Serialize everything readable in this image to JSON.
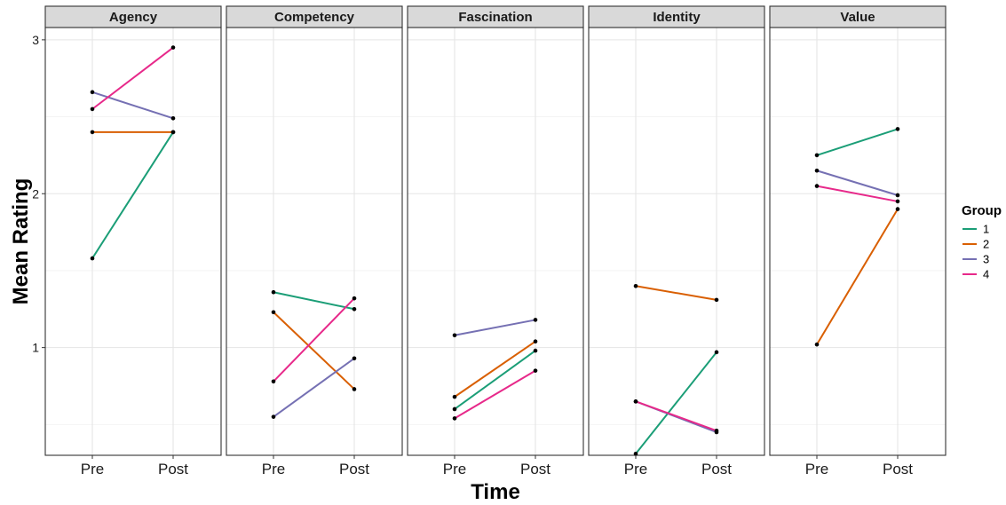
{
  "chart_data": {
    "type": "line",
    "facets": [
      "Agency",
      "Competency",
      "Fascination",
      "Identity",
      "Value"
    ],
    "categories": [
      "Pre",
      "Post"
    ],
    "xlabel": "Time",
    "ylabel": "Mean Rating",
    "ylim": [
      0.3,
      3.08
    ],
    "yticks": [
      "1",
      "2",
      "3"
    ],
    "grid": true,
    "legend": {
      "title": "Group",
      "position": "right",
      "entries": [
        "1",
        "2",
        "3",
        "4"
      ]
    },
    "colors": {
      "1": "#1b9e77",
      "2": "#d95f02",
      "3": "#7570b3",
      "4": "#e7298a"
    },
    "point_color": "#000000",
    "series": [
      {
        "name": "1",
        "facet": "Agency",
        "values": [
          1.58,
          2.4
        ]
      },
      {
        "name": "2",
        "facet": "Agency",
        "values": [
          2.4,
          2.4
        ]
      },
      {
        "name": "3",
        "facet": "Agency",
        "values": [
          2.66,
          2.49
        ]
      },
      {
        "name": "4",
        "facet": "Agency",
        "values": [
          2.55,
          2.95
        ]
      },
      {
        "name": "1",
        "facet": "Competency",
        "values": [
          1.36,
          1.25
        ]
      },
      {
        "name": "2",
        "facet": "Competency",
        "values": [
          1.23,
          0.73
        ]
      },
      {
        "name": "3",
        "facet": "Competency",
        "values": [
          0.55,
          0.93
        ]
      },
      {
        "name": "4",
        "facet": "Competency",
        "values": [
          0.78,
          1.32
        ]
      },
      {
        "name": "1",
        "facet": "Fascination",
        "values": [
          0.6,
          0.98
        ]
      },
      {
        "name": "2",
        "facet": "Fascination",
        "values": [
          0.68,
          1.04
        ]
      },
      {
        "name": "3",
        "facet": "Fascination",
        "values": [
          1.08,
          1.18
        ]
      },
      {
        "name": "4",
        "facet": "Fascination",
        "values": [
          0.54,
          0.85
        ]
      },
      {
        "name": "1",
        "facet": "Identity",
        "values": [
          0.31,
          0.97
        ]
      },
      {
        "name": "2",
        "facet": "Identity",
        "values": [
          1.4,
          1.31
        ]
      },
      {
        "name": "3",
        "facet": "Identity",
        "values": [
          0.65,
          0.45
        ]
      },
      {
        "name": "4",
        "facet": "Identity",
        "values": [
          0.65,
          0.46
        ]
      },
      {
        "name": "1",
        "facet": "Value",
        "values": [
          2.25,
          2.42
        ]
      },
      {
        "name": "2",
        "facet": "Value",
        "values": [
          1.02,
          1.9
        ]
      },
      {
        "name": "3",
        "facet": "Value",
        "values": [
          2.15,
          1.99
        ]
      },
      {
        "name": "4",
        "facet": "Value",
        "values": [
          2.05,
          1.95
        ]
      }
    ]
  }
}
